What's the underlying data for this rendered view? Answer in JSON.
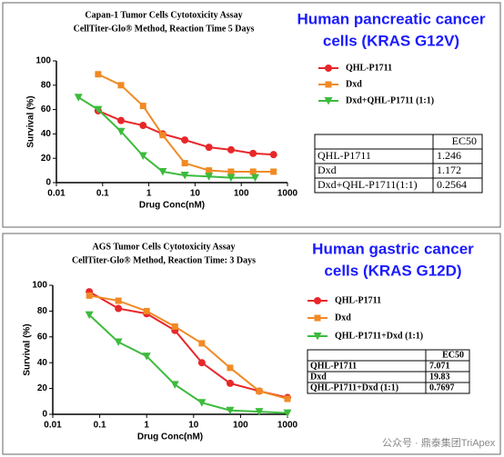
{
  "chart_data": [
    {
      "type": "line",
      "title": "Capan-1 Tumor Cells Cytotoxicity Assay",
      "subtitle": "CellTiter-Glo® Method, Reaction Time 5 Days",
      "heading": [
        "Human pancreatic cancer",
        "cells (KRAS G12V)"
      ],
      "x_label": "Drug Conc(nM)",
      "y_label": "Survival (%)",
      "log_x": true,
      "xlim": [
        0.01,
        1000
      ],
      "xticks": [
        0.01,
        0.1,
        1,
        10,
        100,
        1000
      ],
      "ylim": [
        0,
        100
      ],
      "yticks": [
        0,
        20,
        40,
        60,
        80,
        100
      ],
      "series": [
        {
          "name": "QHL-P1711",
          "color": "#e8272a",
          "marker": "circle",
          "x": [
            0.08,
            0.25,
            0.75,
            2,
            6,
            20,
            60,
            180,
            500
          ],
          "values": [
            59,
            51,
            47,
            40,
            35,
            29,
            27,
            24,
            23
          ]
        },
        {
          "name": "Dxd",
          "color": "#f08a24",
          "marker": "square",
          "x": [
            0.08,
            0.25,
            0.75,
            2,
            6,
            20,
            60,
            180,
            500
          ],
          "values": [
            89,
            80,
            63,
            39,
            16,
            10,
            9,
            9,
            9
          ]
        },
        {
          "name": "Dxd+QHL-P1711 (1:1)",
          "color": "#3dbb3d",
          "marker": "triangle",
          "x": [
            0.03,
            0.08,
            0.25,
            0.75,
            2,
            6,
            20,
            60,
            200
          ],
          "values": [
            70,
            60,
            42,
            22,
            9,
            6,
            5,
            4,
            4
          ]
        }
      ],
      "table": {
        "header": [
          "EC50"
        ],
        "rows": [
          [
            "QHL-P1711",
            1.246
          ],
          [
            "Dxd",
            1.172
          ],
          [
            "Dxd+QHL-P1711(1:1)",
            0.2564
          ]
        ]
      }
    },
    {
      "type": "line",
      "title": "AGS Tumor Cells Cytotoxicity Assay",
      "subtitle": "CellTiter-Glo® Method, Reaction Time: 3 Days",
      "heading": [
        "Human gastric cancer",
        "cells (KRAS G12D)"
      ],
      "x_label": "Drug Conc(nM)",
      "y_label": "Survival (%)",
      "log_x": true,
      "xlim": [
        0.01,
        1000
      ],
      "xticks": [
        0.01,
        0.1,
        1,
        10,
        100,
        1000
      ],
      "ylim": [
        0,
        100
      ],
      "yticks": [
        0,
        20,
        40,
        60,
        80,
        100
      ],
      "series": [
        {
          "name": "QHL-P1711",
          "color": "#e8272a",
          "marker": "circle",
          "x": [
            0.06,
            0.25,
            1,
            4,
            15,
            60,
            250,
            1000
          ],
          "values": [
            95,
            82,
            78,
            65,
            40,
            24,
            18,
            13
          ]
        },
        {
          "name": "Dxd",
          "color": "#f08a24",
          "marker": "square",
          "x": [
            0.06,
            0.25,
            1,
            4,
            15,
            60,
            250,
            1000
          ],
          "values": [
            92,
            88,
            80,
            68,
            55,
            36,
            18,
            12
          ]
        },
        {
          "name": "QHL-P1711+Dxd (1:1)",
          "color": "#3dbb3d",
          "marker": "triangle",
          "x": [
            0.06,
            0.25,
            1,
            4,
            15,
            60,
            250,
            1000
          ],
          "values": [
            77,
            56,
            45,
            23,
            9,
            3,
            2,
            1
          ]
        }
      ],
      "table": {
        "header": [
          "EC50"
        ],
        "rows": [
          [
            "QHL-P1711",
            7.071
          ],
          [
            "Dxd",
            19.83
          ],
          [
            "QHL-P1711+Dxd (1:1)",
            0.7697
          ]
        ]
      }
    }
  ],
  "watermark": "公众号 · 鼎泰集团TriApex"
}
